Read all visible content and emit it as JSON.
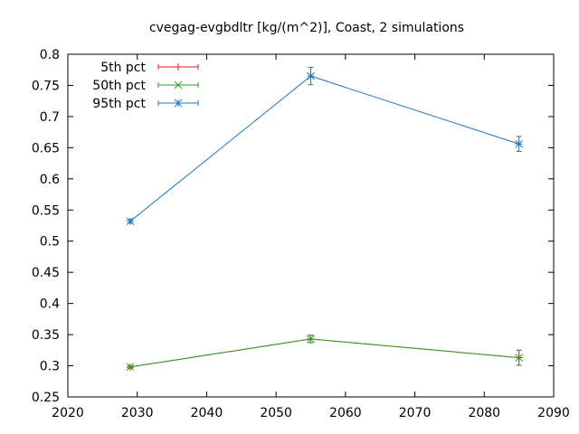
{
  "chart_data": {
    "type": "line",
    "title": "cvegag-evgbdltr [kg/(m^2)], Coast, 2 simulations",
    "xlabel": "",
    "ylabel": "",
    "xlim": [
      2020,
      2090
    ],
    "ylim": [
      0.25,
      0.8
    ],
    "xticks": [
      2020,
      2030,
      2040,
      2050,
      2060,
      2070,
      2080,
      2090
    ],
    "xtick_labels": [
      "2020",
      "2030",
      "2040",
      "2050",
      "2060",
      "2070",
      "2080",
      "2090"
    ],
    "yticks": [
      0.25,
      0.3,
      0.35,
      0.4,
      0.45,
      0.5,
      0.55,
      0.6,
      0.65,
      0.7,
      0.75,
      0.8
    ],
    "ytick_labels": [
      "0.25",
      "0.3",
      "0.35",
      "0.4",
      "0.45",
      "0.5",
      "0.55",
      "0.6",
      "0.65",
      "0.7",
      "0.75",
      "0.8"
    ],
    "grid": false,
    "legend_position": "top-left",
    "series": [
      {
        "name": "5th pct",
        "color": "#e41a1c",
        "marker": "plus",
        "x": [
          2029,
          2055,
          2085
        ],
        "y": [
          0.298,
          0.343,
          0.313
        ],
        "err": [
          0.002,
          0.006,
          0.012
        ]
      },
      {
        "name": "50th pct",
        "color": "#2ca02c",
        "marker": "cross",
        "x": [
          2029,
          2055,
          2085
        ],
        "y": [
          0.298,
          0.343,
          0.313
        ],
        "err": [
          0.002,
          0.006,
          0.012
        ]
      },
      {
        "name": "95th pct",
        "color": "#1f78c8",
        "marker": "star",
        "x": [
          2029,
          2055,
          2085
        ],
        "y": [
          0.532,
          0.765,
          0.656
        ],
        "err": [
          0.003,
          0.014,
          0.012
        ]
      }
    ]
  }
}
